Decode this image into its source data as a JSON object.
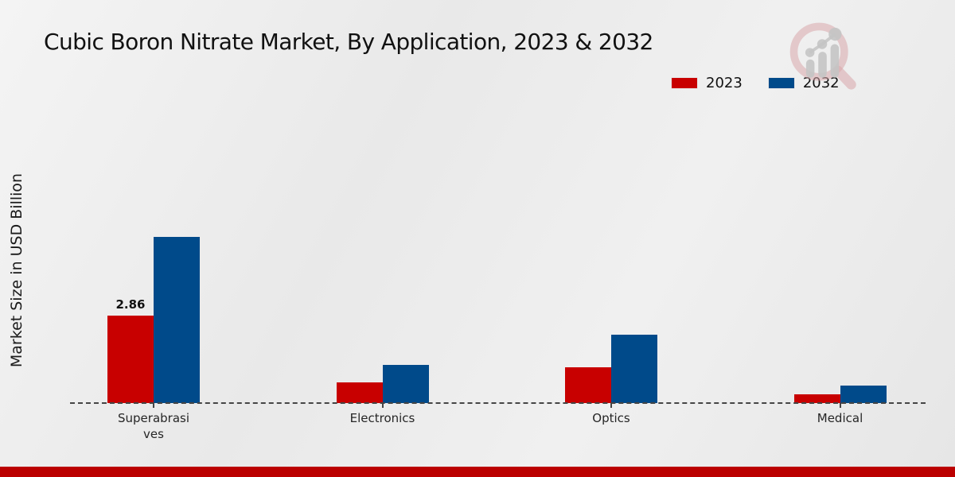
{
  "page": {
    "title": "Cubic Boron Nitrate Market, By Application, 2023 & 2032",
    "ylabel": "Market Size in USD Billion"
  },
  "branding": {
    "logo_name": "magnifier-growth-chart-logo",
    "footer_bar_color": "#bb0000"
  },
  "chart_data": {
    "type": "bar",
    "title": "Cubic Boron Nitrate Market, By Application, 2023 & 2032",
    "ylabel": "Market Size in USD Billion",
    "units": "USD Billion",
    "categories": [
      "Superabrasives",
      "Electronics",
      "Optics",
      "Medical"
    ],
    "series": [
      {
        "name": "2023",
        "color": "#c80000",
        "values": [
          2.86,
          0.67,
          1.16,
          0.28
        ]
      },
      {
        "name": "2032",
        "color": "#004a8a",
        "values": [
          5.41,
          1.25,
          2.23,
          0.57
        ]
      }
    ],
    "data_labels": [
      {
        "series": "2023",
        "category": "Superabrasives",
        "text": "2.86"
      }
    ],
    "ylim": [
      0,
      6
    ],
    "axis": {
      "baseline_style": "dashed",
      "gridlines": false,
      "y_tick_labels_visible": false
    },
    "legend_position": "top-right"
  }
}
